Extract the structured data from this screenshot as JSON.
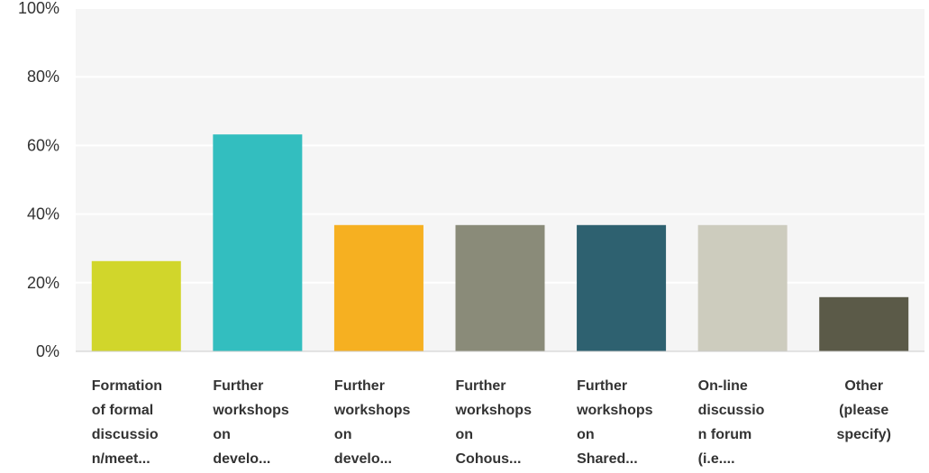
{
  "chart_data": {
    "type": "bar",
    "title": "",
    "xlabel": "",
    "ylabel": "",
    "ylim": [
      0,
      100
    ],
    "yticks": [
      0,
      20,
      40,
      60,
      80,
      100
    ],
    "ytick_labels": [
      "0%",
      "20%",
      "40%",
      "60%",
      "80%",
      "100%"
    ],
    "grid": true,
    "legend": "none",
    "categories": [
      [
        "Formation",
        "of formal",
        "discussio",
        "n/meet..."
      ],
      [
        "Further",
        "workshops",
        "on",
        "develo..."
      ],
      [
        "Further",
        "workshops",
        "on",
        "develo..."
      ],
      [
        "Further",
        "workshops",
        "on",
        "Cohous..."
      ],
      [
        "Further",
        "workshops",
        "on",
        "Shared..."
      ],
      [
        "On-line",
        "discussio",
        "n forum",
        "(i.e...."
      ],
      [
        "Other",
        "(please",
        "specify)"
      ]
    ],
    "values": [
      26.3,
      63.2,
      36.8,
      36.8,
      36.8,
      36.8,
      15.8
    ],
    "colors": [
      "#d1d62b",
      "#33bebf",
      "#f6b021",
      "#8a8b79",
      "#2e6170",
      "#cdccbe",
      "#5b5a48"
    ]
  }
}
